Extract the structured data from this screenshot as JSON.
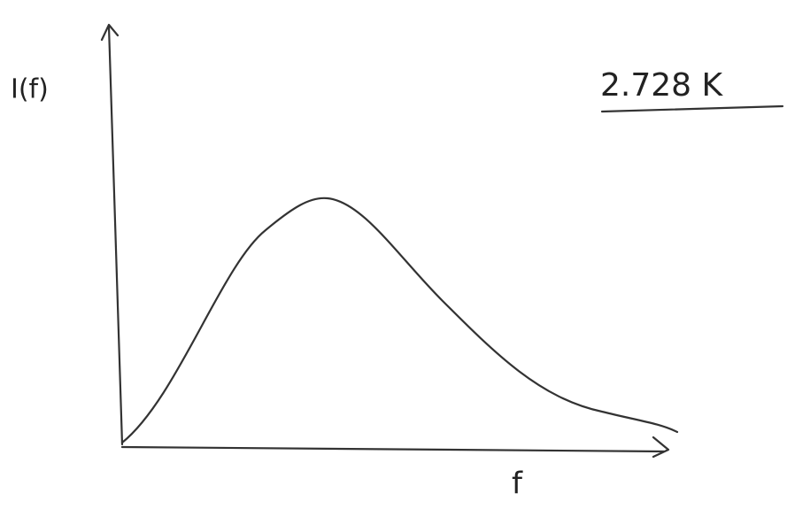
{
  "labels": {
    "y_axis": "I(f)",
    "x_axis": "f",
    "temperature": "2.728 K"
  }
}
